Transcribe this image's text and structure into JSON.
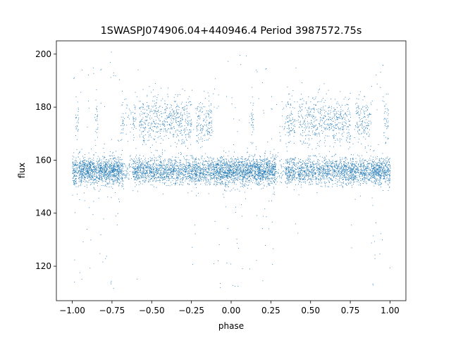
{
  "chart_data": {
    "type": "scatter",
    "title": "1SWASPJ074906.04+440946.4 Period 3987572.75s",
    "xlabel": "phase",
    "ylabel": "flux",
    "xlim": [
      -1.1,
      1.1
    ],
    "ylim": [
      107,
      205
    ],
    "grid": false,
    "legend": "none",
    "point_color": "#1f77b4",
    "x_ticks": [
      -1.0,
      -0.75,
      -0.5,
      -0.25,
      0.0,
      0.25,
      0.5,
      0.75,
      1.0
    ],
    "x_tick_labels": [
      "−1.00",
      "−0.75",
      "−0.50",
      "−0.25",
      "0.00",
      "0.25",
      "0.50",
      "0.75",
      "1.00"
    ],
    "y_ticks": [
      120,
      140,
      160,
      180,
      200
    ],
    "y_tick_labels": [
      "120",
      "140",
      "160",
      "180",
      "200"
    ],
    "series": [
      {
        "baseline_flux": 156,
        "baseline_scatter": 2.5,
        "phase_range": [
          -1.0,
          1.0
        ],
        "high_state_flux": 175,
        "high_state_phases": [
          [
            -0.98,
            -0.96
          ],
          [
            -0.86,
            -0.84
          ],
          [
            -0.7,
            -0.6
          ],
          [
            -0.58,
            -0.25
          ],
          [
            -0.22,
            -0.12
          ],
          [
            0.12,
            0.14
          ],
          [
            0.3,
            0.4
          ],
          [
            0.42,
            0.75
          ],
          [
            0.78,
            0.88
          ],
          [
            0.96,
            0.99
          ]
        ],
        "gap_phases": [
          [
            -0.68,
            -0.62
          ],
          [
            0.28,
            0.34
          ],
          [
            0.4,
            0.42
          ]
        ]
      }
    ]
  }
}
